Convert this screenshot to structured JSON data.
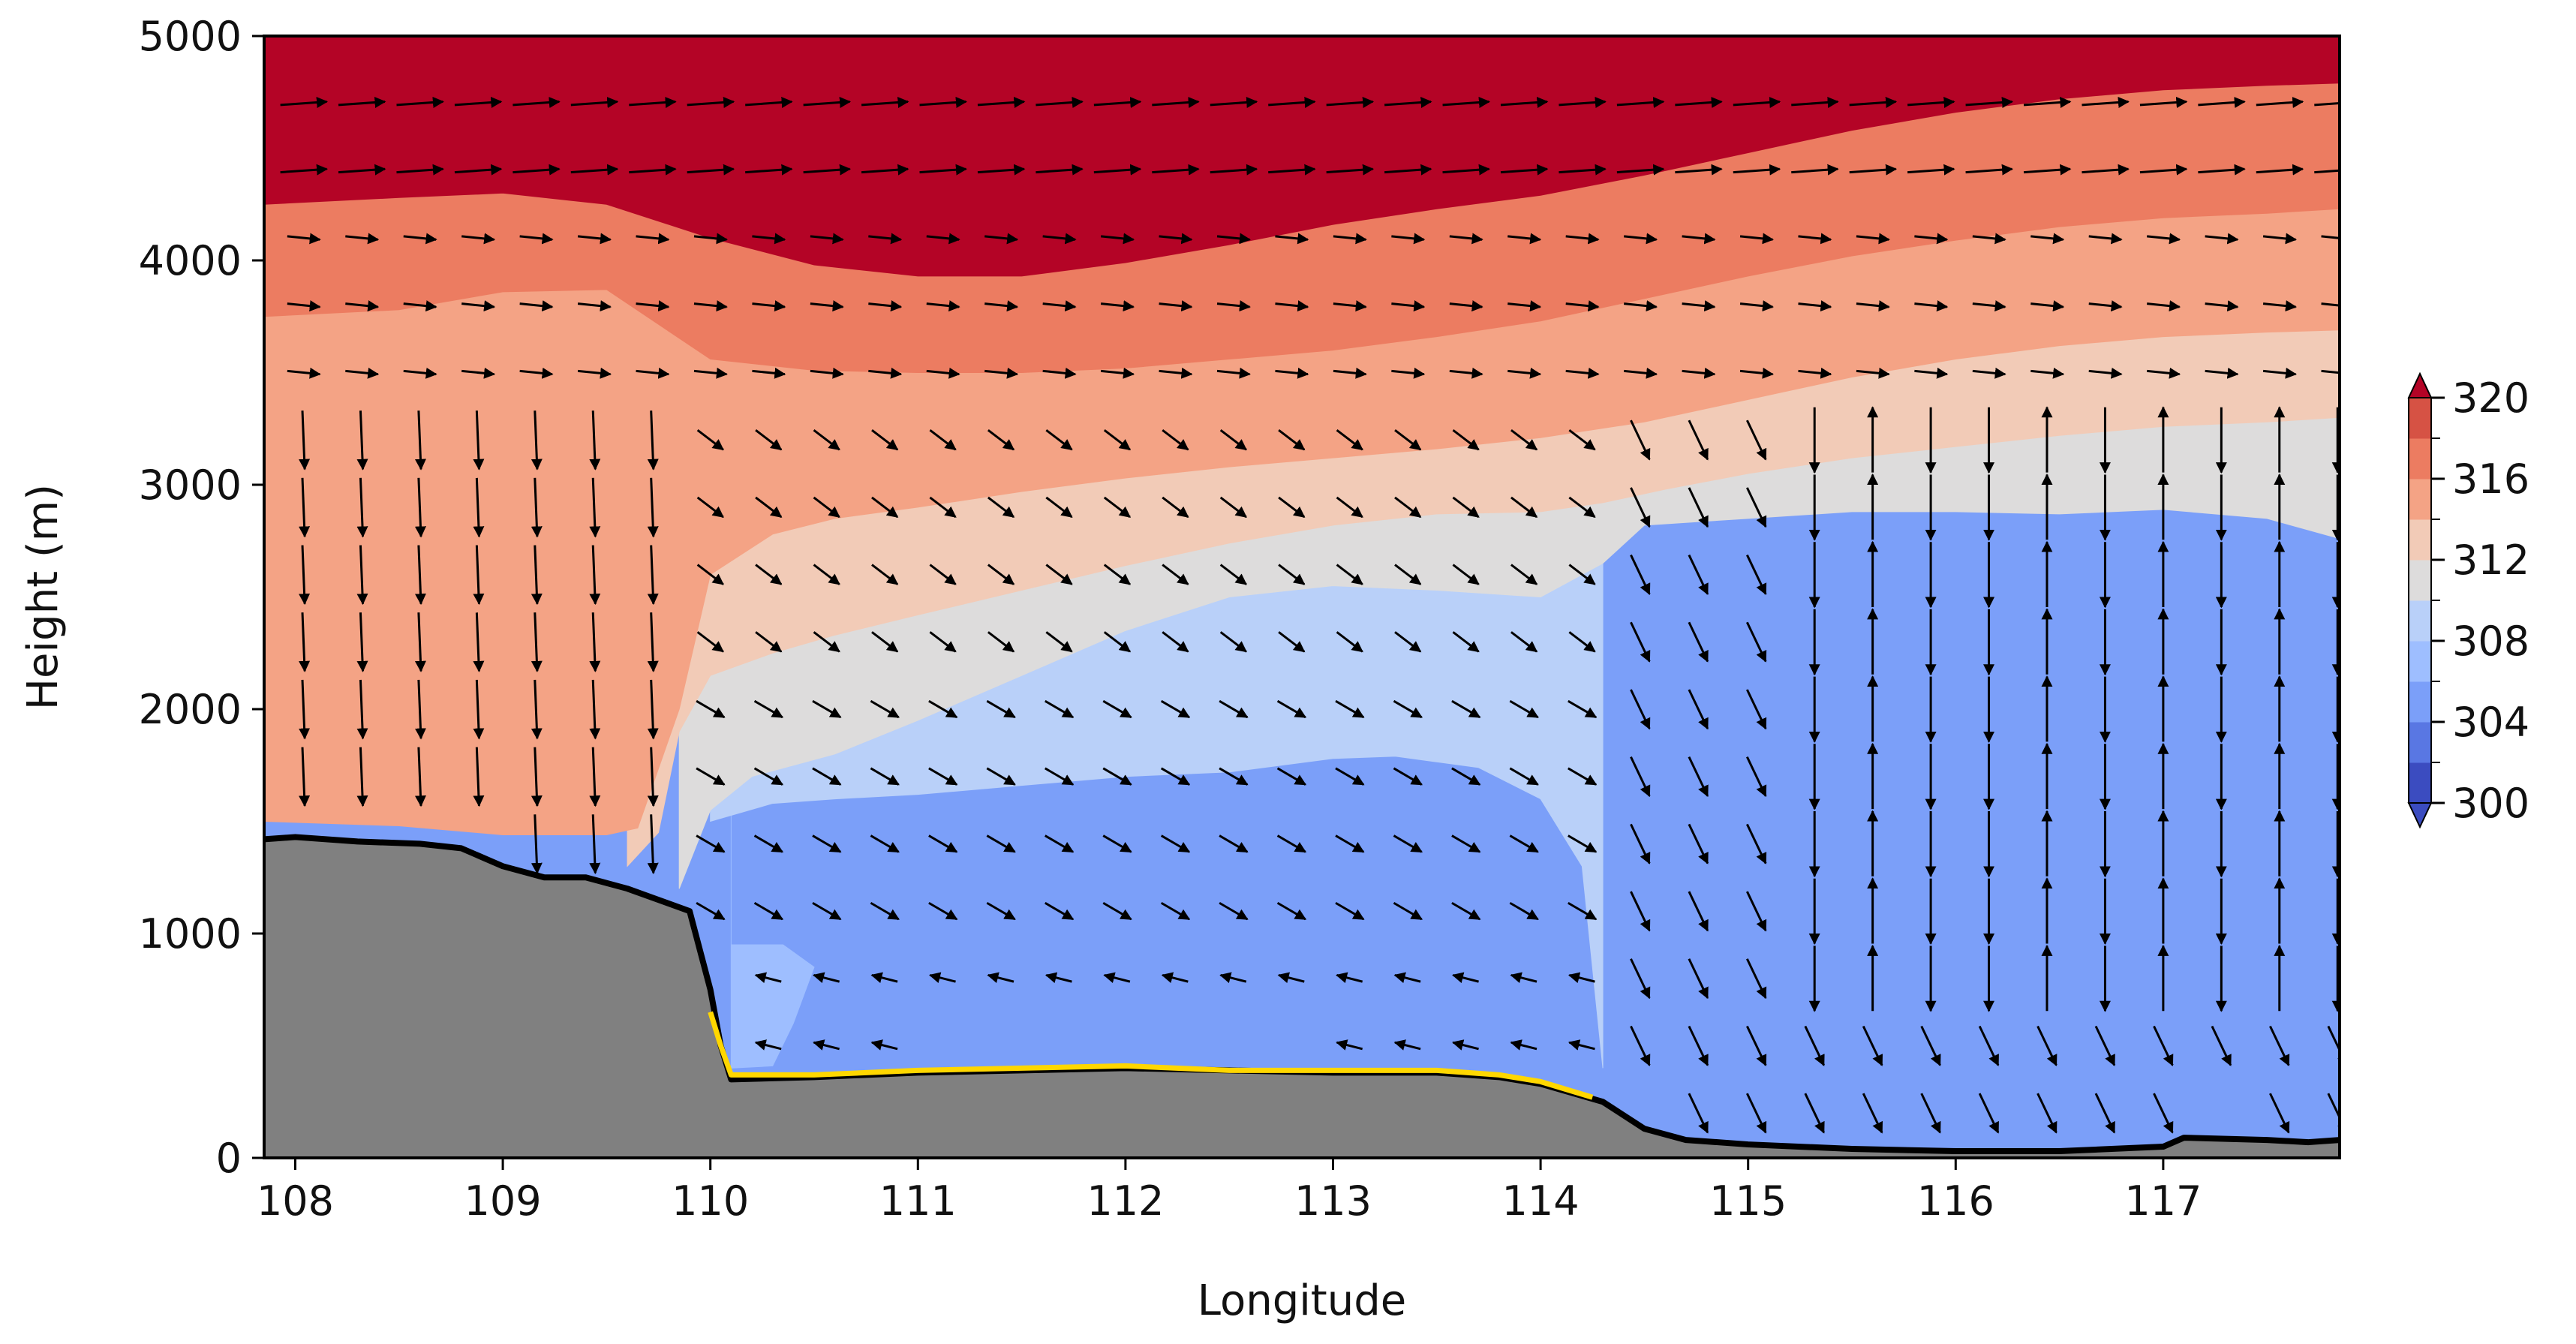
{
  "chart_data": {
    "type": "heatmap",
    "subtype": "filled-contour cross-section with wind vectors and terrain",
    "title": "",
    "xlabel": "Longitude",
    "ylabel": "Height (m)",
    "xlim": [
      107.85,
      117.85
    ],
    "ylim": [
      0,
      5000
    ],
    "xticks": [
      108,
      109,
      110,
      111,
      112,
      113,
      114,
      115,
      116,
      117
    ],
    "xtick_labels": [
      "108",
      "109",
      "110",
      "111",
      "112",
      "113",
      "114",
      "115",
      "116",
      "117"
    ],
    "yticks": [
      0,
      1000,
      2000,
      3000,
      4000,
      5000
    ],
    "ytick_labels": [
      "0",
      "1000",
      "2000",
      "3000",
      "4000",
      "5000"
    ],
    "grid": false,
    "colorbar": {
      "placement": "right",
      "extend": "both",
      "range": [
        300,
        320
      ],
      "step": 2,
      "tick_values": [
        300,
        304,
        308,
        312,
        316,
        320
      ],
      "tick_labels": [
        "300",
        "304",
        "308",
        "312",
        "316",
        "320"
      ],
      "colors": {
        "300-302": "#3b4cc0",
        "302-304": "#5977e3",
        "304-306": "#7b9ff9",
        "306-308": "#9ebeff",
        "308-310": "#b9d0f9",
        "310-312": "#dddcdc",
        "312-314": "#f2cbb7",
        "314-316": "#f4a385",
        "316-318": "#ec7c61",
        "318-320": "#d65244",
        "over": "#b40426"
      }
    },
    "contour_levels": [
      {
        "value_range": [
          316,
          320
        ],
        "color": "#b40426",
        "lower_boundary": {
          "x": [
            107.85,
            108.5,
            109.0,
            109.5,
            110.0,
            110.5,
            111.0,
            111.5,
            112.0,
            112.5,
            113.0,
            113.5,
            114.0,
            114.5,
            115.0,
            115.5,
            116.0,
            116.5,
            117.0,
            117.5,
            117.85
          ],
          "y": [
            4250,
            4280,
            4300,
            4250,
            4100,
            3980,
            3930,
            3930,
            3990,
            4070,
            4160,
            4230,
            4290,
            4380,
            4480,
            4580,
            4660,
            4720,
            4760,
            4780,
            4790
          ]
        }
      },
      {
        "value_range": [
          314,
          316
        ],
        "color": "#ec7c61",
        "lower_boundary": {
          "x": [
            107.85,
            108.5,
            109.0,
            109.5,
            110.0,
            110.5,
            111.0,
            111.5,
            112.0,
            112.5,
            113.0,
            113.5,
            114.0,
            114.5,
            115.0,
            115.5,
            116.0,
            116.5,
            117.0,
            117.5,
            117.85
          ],
          "y": [
            3750,
            3780,
            3860,
            3870,
            3560,
            3510,
            3500,
            3500,
            3520,
            3560,
            3600,
            3660,
            3730,
            3830,
            3930,
            4020,
            4090,
            4150,
            4190,
            4210,
            4230
          ]
        }
      },
      {
        "value_range": [
          312,
          314
        ],
        "color": "#f4a385",
        "lower_boundary": {
          "x": [
            107.85,
            108.5,
            109.0,
            109.5,
            109.65,
            109.85,
            110.0,
            110.3,
            110.6,
            111.0,
            111.5,
            112.0,
            112.5,
            113.0,
            113.5,
            114.0,
            114.5,
            115.0,
            115.5,
            116.0,
            116.5,
            117.0,
            117.5,
            117.85
          ],
          "y": [
            1500,
            1480,
            1440,
            1440,
            1470,
            2000,
            2600,
            2780,
            2850,
            2900,
            2970,
            3030,
            3080,
            3120,
            3160,
            3210,
            3280,
            3380,
            3480,
            3560,
            3620,
            3660,
            3680,
            3690
          ]
        }
      },
      {
        "value_range": [
          310,
          312
        ],
        "color": "#f2cbb7",
        "lower_boundary": {
          "x": [
            109.6,
            109.75,
            109.85,
            110.0,
            110.3,
            110.6,
            111.0,
            111.5,
            112.0,
            112.5,
            113.0,
            113.5,
            114.0,
            114.3,
            114.6,
            115.0,
            115.5,
            116.0,
            116.5,
            117.0,
            117.5,
            117.85
          ],
          "y": [
            1300,
            1450,
            1900,
            2150,
            2250,
            2330,
            2420,
            2530,
            2640,
            2740,
            2820,
            2870,
            2880,
            2920,
            2980,
            3050,
            3120,
            3170,
            3220,
            3260,
            3280,
            3300
          ]
        }
      },
      {
        "value_range": [
          308,
          310
        ],
        "color": "#dddcdc",
        "lower_boundary": {
          "x": [
            109.85,
            110.0,
            110.2,
            110.6,
            111.0,
            111.5,
            112.0,
            112.5,
            113.0,
            113.5,
            114.0,
            114.3,
            114.5,
            115.0,
            115.5,
            116.0,
            116.5,
            117.0,
            117.5,
            117.85
          ],
          "y": [
            1200,
            1550,
            1700,
            1800,
            1950,
            2150,
            2350,
            2500,
            2550,
            2530,
            2500,
            2650,
            2820,
            2850,
            2880,
            2880,
            2870,
            2890,
            2850,
            2760
          ]
        }
      },
      {
        "value_range": [
          306,
          308
        ],
        "color": "#b9d0f9",
        "lower_boundary": {
          "x": [
            110.0,
            110.3,
            110.6,
            111.0,
            111.5,
            112.0,
            112.5,
            113.0,
            113.3,
            113.7,
            114.0,
            114.2,
            114.3
          ],
          "y": [
            1500,
            1580,
            1600,
            1620,
            1660,
            1700,
            1720,
            1780,
            1790,
            1740,
            1600,
            1300,
            400
          ]
        }
      },
      {
        "value_range": [
          304,
          306
        ],
        "color": "#9ebeff",
        "lower_boundary": {
          "x": [
            110.1,
            110.35,
            110.5,
            110.4,
            110.3,
            110.1
          ],
          "y": [
            950,
            950,
            850,
            600,
            410,
            400
          ]
        }
      },
      {
        "value_range": [
          302,
          304
        ],
        "color": "#7b9ff9"
      }
    ],
    "terrain": {
      "fill_color": "#808080",
      "outline_color": "#000000",
      "x": [
        107.85,
        108.0,
        108.3,
        108.6,
        108.8,
        109.0,
        109.2,
        109.4,
        109.6,
        109.75,
        109.9,
        110.0,
        110.05,
        110.1,
        110.5,
        111.0,
        111.5,
        112.0,
        112.5,
        113.0,
        113.5,
        113.8,
        114.0,
        114.3,
        114.5,
        114.7,
        115.0,
        115.5,
        116.0,
        116.5,
        117.0,
        117.1,
        117.5,
        117.7,
        117.85
      ],
      "y": [
        1420,
        1430,
        1410,
        1400,
        1380,
        1300,
        1250,
        1250,
        1200,
        1150,
        1100,
        750,
        500,
        350,
        360,
        380,
        390,
        400,
        390,
        380,
        380,
        360,
        330,
        250,
        130,
        80,
        60,
        40,
        30,
        30,
        50,
        90,
        80,
        70,
        80
      ]
    },
    "yellow_contour": {
      "color": "#ffd700",
      "x": [
        110.0,
        110.05,
        110.1,
        110.5,
        111.0,
        111.5,
        112.0,
        112.5,
        113.0,
        113.5,
        113.8,
        114.0,
        114.25
      ],
      "y": [
        650,
        500,
        370,
        370,
        390,
        400,
        410,
        390,
        390,
        390,
        370,
        340,
        270
      ]
    },
    "wind_vectors": {
      "color": "#000000",
      "columns_x": [
        108.04,
        108.32,
        108.6,
        108.88,
        109.16,
        109.44,
        109.72,
        110.0,
        110.28,
        110.56,
        110.84,
        111.12,
        111.4,
        111.68,
        111.96,
        112.24,
        112.52,
        112.8,
        113.08,
        113.36,
        113.64,
        113.92,
        114.2,
        114.48,
        114.76,
        115.04,
        115.32,
        115.6,
        115.88,
        116.16,
        116.44,
        116.72,
        117.0,
        117.28,
        117.56,
        117.84
      ],
      "rows_y": [
        200,
        500,
        800,
        1100,
        1400,
        1700,
        2000,
        2300,
        2600,
        2900,
        3200,
        3500,
        3800,
        4100,
        4400,
        4700
      ],
      "note": "rows/cols approximate; each vector rendered per flow field"
    }
  }
}
